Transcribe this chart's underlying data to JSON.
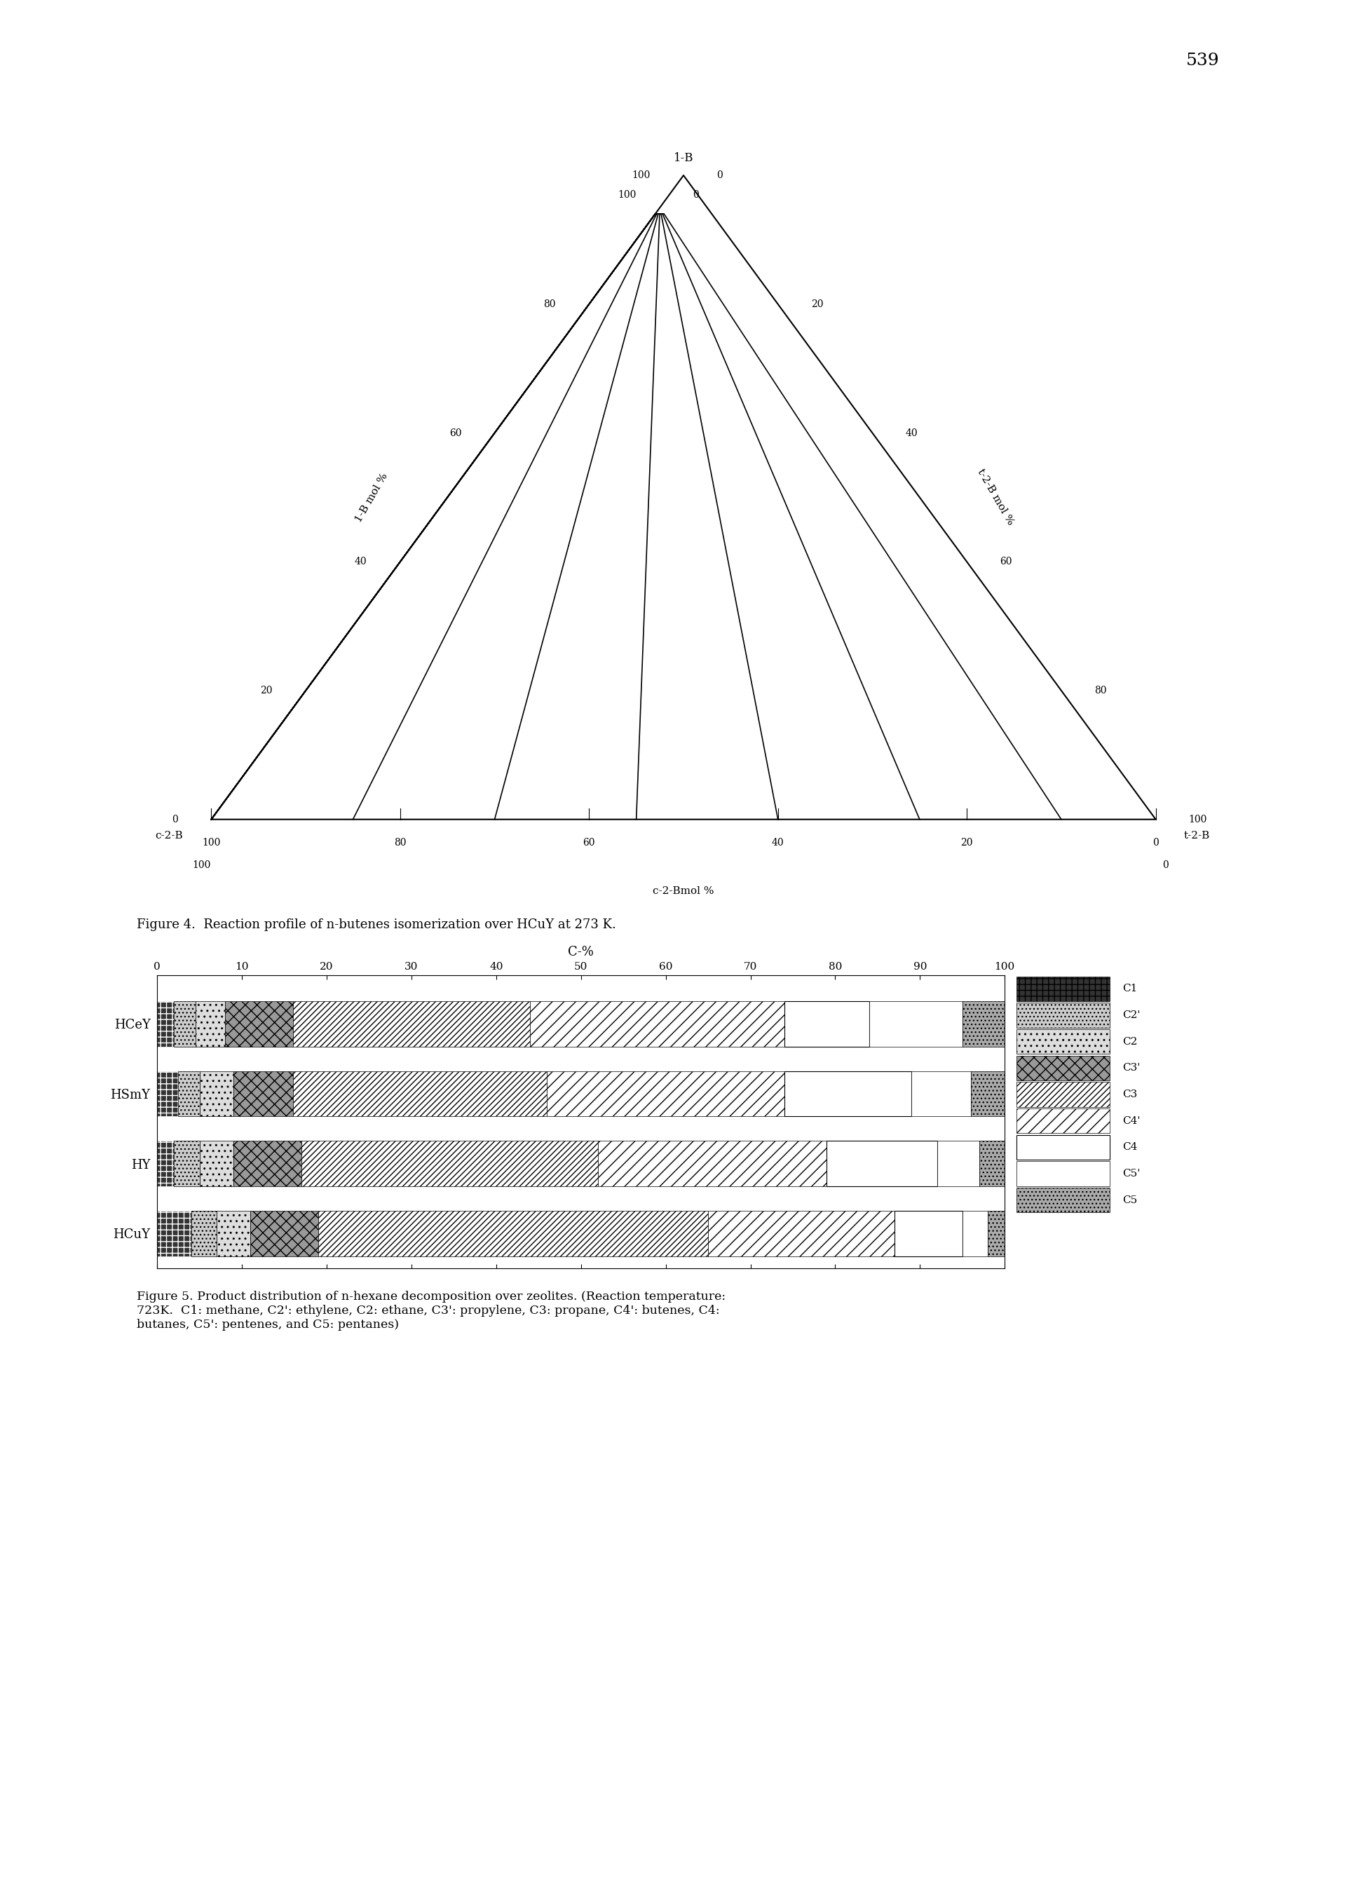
{
  "page_number": "539",
  "figure4": {
    "title": "Figure 4.  Reaction profile of n-butenes isomerization over HCuY at 273 K.",
    "left_label": "1-B mol %",
    "right_label": "t-2-B mol %",
    "bottom_label": "c-2-Bmol %",
    "top_label": "1-B",
    "bl_label": "c-2-B",
    "br_label": "t-2-B",
    "left_ticks": [
      0,
      20,
      40,
      60,
      80,
      100
    ],
    "right_ticks": [
      0,
      20,
      40,
      60,
      80,
      100
    ],
    "bottom_ticks": [
      0,
      20,
      40,
      60,
      80,
      100
    ]
  },
  "figure5": {
    "xlabel": "C-%",
    "catalysts_order": [
      "HCuY",
      "HY",
      "HSmY",
      "HCeY"
    ],
    "components": [
      "C1",
      "C2'",
      "C2",
      "C3'",
      "C3",
      "C4'",
      "C4",
      "C5'",
      "C5"
    ],
    "values": {
      "HCeY": [
        2.0,
        2.5,
        3.5,
        8.0,
        28.0,
        30.0,
        10.0,
        11.0,
        5.0
      ],
      "HSmY": [
        2.5,
        2.5,
        4.0,
        7.0,
        30.0,
        28.0,
        15.0,
        7.0,
        4.0
      ],
      "HY": [
        2.0,
        3.0,
        4.0,
        8.0,
        35.0,
        27.0,
        13.0,
        5.0,
        3.0
      ],
      "HCuY": [
        4.0,
        3.0,
        4.0,
        8.0,
        46.0,
        22.0,
        8.0,
        3.0,
        2.0
      ]
    },
    "caption": "Figure 5. Product distribution of n-hexane decomposition over zeolites. (Reaction temperature:\n723K.  C1: methane, C2': ethylene, C2: ethane, C3': propylene, C3: propane, C4': butenes, C4:\nbutanes, C5': pentenes, and C5: pentanes)"
  }
}
